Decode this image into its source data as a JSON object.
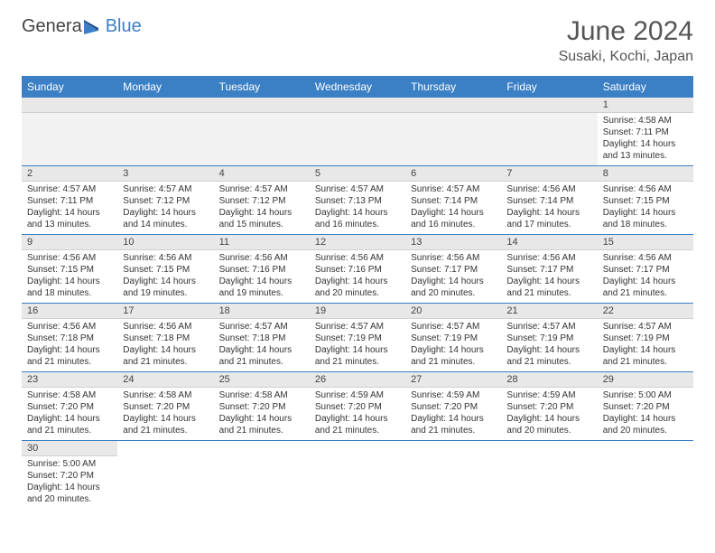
{
  "logo": {
    "text_general": "Genera",
    "text_blue": "Blue"
  },
  "title": "June 2024",
  "location": "Susaki, Kochi, Japan",
  "colors": {
    "header_bg": "#3b7fc4",
    "header_text": "#ffffff",
    "daynum_bg": "#e8e8e8",
    "cell_border": "#3b7fc4",
    "body_text": "#333333",
    "title_text": "#555555"
  },
  "typography": {
    "title_fontsize": 30,
    "location_fontsize": 16,
    "weekday_fontsize": 12,
    "daynum_fontsize": 11,
    "body_fontsize": 10
  },
  "weekdays": [
    "Sunday",
    "Monday",
    "Tuesday",
    "Wednesday",
    "Thursday",
    "Friday",
    "Saturday"
  ],
  "first_weekday_index": 6,
  "days": [
    {
      "n": 1,
      "sunrise": "4:58 AM",
      "sunset": "7:11 PM",
      "dl_h": 14,
      "dl_m": 13
    },
    {
      "n": 2,
      "sunrise": "4:57 AM",
      "sunset": "7:11 PM",
      "dl_h": 14,
      "dl_m": 13
    },
    {
      "n": 3,
      "sunrise": "4:57 AM",
      "sunset": "7:12 PM",
      "dl_h": 14,
      "dl_m": 14
    },
    {
      "n": 4,
      "sunrise": "4:57 AM",
      "sunset": "7:12 PM",
      "dl_h": 14,
      "dl_m": 15
    },
    {
      "n": 5,
      "sunrise": "4:57 AM",
      "sunset": "7:13 PM",
      "dl_h": 14,
      "dl_m": 16
    },
    {
      "n": 6,
      "sunrise": "4:57 AM",
      "sunset": "7:14 PM",
      "dl_h": 14,
      "dl_m": 16
    },
    {
      "n": 7,
      "sunrise": "4:56 AM",
      "sunset": "7:14 PM",
      "dl_h": 14,
      "dl_m": 17
    },
    {
      "n": 8,
      "sunrise": "4:56 AM",
      "sunset": "7:15 PM",
      "dl_h": 14,
      "dl_m": 18
    },
    {
      "n": 9,
      "sunrise": "4:56 AM",
      "sunset": "7:15 PM",
      "dl_h": 14,
      "dl_m": 18
    },
    {
      "n": 10,
      "sunrise": "4:56 AM",
      "sunset": "7:15 PM",
      "dl_h": 14,
      "dl_m": 19
    },
    {
      "n": 11,
      "sunrise": "4:56 AM",
      "sunset": "7:16 PM",
      "dl_h": 14,
      "dl_m": 19
    },
    {
      "n": 12,
      "sunrise": "4:56 AM",
      "sunset": "7:16 PM",
      "dl_h": 14,
      "dl_m": 20
    },
    {
      "n": 13,
      "sunrise": "4:56 AM",
      "sunset": "7:17 PM",
      "dl_h": 14,
      "dl_m": 20
    },
    {
      "n": 14,
      "sunrise": "4:56 AM",
      "sunset": "7:17 PM",
      "dl_h": 14,
      "dl_m": 21
    },
    {
      "n": 15,
      "sunrise": "4:56 AM",
      "sunset": "7:17 PM",
      "dl_h": 14,
      "dl_m": 21
    },
    {
      "n": 16,
      "sunrise": "4:56 AM",
      "sunset": "7:18 PM",
      "dl_h": 14,
      "dl_m": 21
    },
    {
      "n": 17,
      "sunrise": "4:56 AM",
      "sunset": "7:18 PM",
      "dl_h": 14,
      "dl_m": 21
    },
    {
      "n": 18,
      "sunrise": "4:57 AM",
      "sunset": "7:18 PM",
      "dl_h": 14,
      "dl_m": 21
    },
    {
      "n": 19,
      "sunrise": "4:57 AM",
      "sunset": "7:19 PM",
      "dl_h": 14,
      "dl_m": 21
    },
    {
      "n": 20,
      "sunrise": "4:57 AM",
      "sunset": "7:19 PM",
      "dl_h": 14,
      "dl_m": 21
    },
    {
      "n": 21,
      "sunrise": "4:57 AM",
      "sunset": "7:19 PM",
      "dl_h": 14,
      "dl_m": 21
    },
    {
      "n": 22,
      "sunrise": "4:57 AM",
      "sunset": "7:19 PM",
      "dl_h": 14,
      "dl_m": 21
    },
    {
      "n": 23,
      "sunrise": "4:58 AM",
      "sunset": "7:20 PM",
      "dl_h": 14,
      "dl_m": 21
    },
    {
      "n": 24,
      "sunrise": "4:58 AM",
      "sunset": "7:20 PM",
      "dl_h": 14,
      "dl_m": 21
    },
    {
      "n": 25,
      "sunrise": "4:58 AM",
      "sunset": "7:20 PM",
      "dl_h": 14,
      "dl_m": 21
    },
    {
      "n": 26,
      "sunrise": "4:59 AM",
      "sunset": "7:20 PM",
      "dl_h": 14,
      "dl_m": 21
    },
    {
      "n": 27,
      "sunrise": "4:59 AM",
      "sunset": "7:20 PM",
      "dl_h": 14,
      "dl_m": 21
    },
    {
      "n": 28,
      "sunrise": "4:59 AM",
      "sunset": "7:20 PM",
      "dl_h": 14,
      "dl_m": 20
    },
    {
      "n": 29,
      "sunrise": "5:00 AM",
      "sunset": "7:20 PM",
      "dl_h": 14,
      "dl_m": 20
    },
    {
      "n": 30,
      "sunrise": "5:00 AM",
      "sunset": "7:20 PM",
      "dl_h": 14,
      "dl_m": 20
    }
  ],
  "labels": {
    "sunrise": "Sunrise:",
    "sunset": "Sunset:",
    "daylight": "Daylight:",
    "hours_word": "hours",
    "and_word": "and",
    "minutes_word": "minutes."
  }
}
